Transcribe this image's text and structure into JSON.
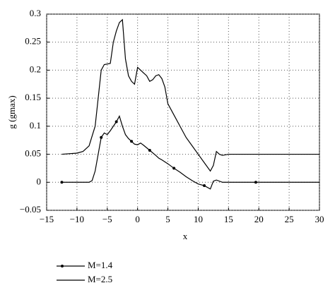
{
  "chart_data": {
    "type": "line",
    "xlabel": "x",
    "ylabel": "g (gmax)",
    "xlim": [
      -15,
      30
    ],
    "ylim": [
      -0.05,
      0.3
    ],
    "xticks": [
      {
        "value": -15,
        "label": "−15"
      },
      {
        "value": -10,
        "label": "−10"
      },
      {
        "value": -5,
        "label": "−5"
      },
      0,
      5,
      10,
      15,
      20,
      25,
      30
    ],
    "yticks": [
      {
        "value": -0.05,
        "label": "−0.05"
      },
      0,
      0.05,
      0.1,
      0.15,
      0.2,
      0.25,
      0.3
    ],
    "grid": true,
    "legend": "bottom-left",
    "series": [
      {
        "name": "M=1.4",
        "color": "#000000",
        "marker": "o",
        "x": [
          -12.5,
          -8,
          -7.5,
          -7,
          -6.5,
          -6,
          -5.5,
          -5,
          -4.5,
          -4,
          -3.5,
          -3,
          -2.5,
          -2,
          -1.5,
          -1,
          -0.5,
          0,
          0.5,
          1,
          2,
          3,
          3.5,
          4,
          5,
          6,
          7,
          8,
          9,
          10,
          11,
          12,
          12.5,
          13,
          14,
          19.5,
          26,
          30
        ],
        "values": [
          0,
          0,
          0.003,
          0.02,
          0.05,
          0.08,
          0.088,
          0.085,
          0.092,
          0.1,
          0.108,
          0.118,
          0.1,
          0.085,
          0.078,
          0.073,
          0.068,
          0.067,
          0.07,
          0.066,
          0.057,
          0.048,
          0.043,
          0.04,
          0.033,
          0.025,
          0.018,
          0.01,
          0.003,
          -0.003,
          -0.006,
          -0.012,
          0.002,
          0.004,
          0,
          0,
          0,
          0
        ]
      },
      {
        "name": "M=2.5",
        "color": "#000000",
        "x": [
          -12.5,
          -10,
          -9,
          -8,
          -7,
          -6.5,
          -6,
          -5.5,
          -4.5,
          -4,
          -3.5,
          -3,
          -2.5,
          -2,
          -1.5,
          -1,
          -0.5,
          0,
          0.5,
          1,
          1.5,
          2,
          2.5,
          3,
          3.5,
          4,
          4.5,
          5,
          6,
          7,
          8,
          9,
          10,
          11,
          12,
          12.5,
          13,
          13.5,
          14,
          15,
          30
        ],
        "values": [
          0.05,
          0.052,
          0.055,
          0.065,
          0.1,
          0.15,
          0.2,
          0.21,
          0.212,
          0.25,
          0.27,
          0.285,
          0.29,
          0.22,
          0.19,
          0.18,
          0.175,
          0.205,
          0.2,
          0.195,
          0.19,
          0.18,
          0.183,
          0.19,
          0.192,
          0.185,
          0.17,
          0.14,
          0.12,
          0.1,
          0.08,
          0.065,
          0.05,
          0.035,
          0.02,
          0.03,
          0.055,
          0.05,
          0.048,
          0.05,
          0.05
        ]
      }
    ]
  }
}
